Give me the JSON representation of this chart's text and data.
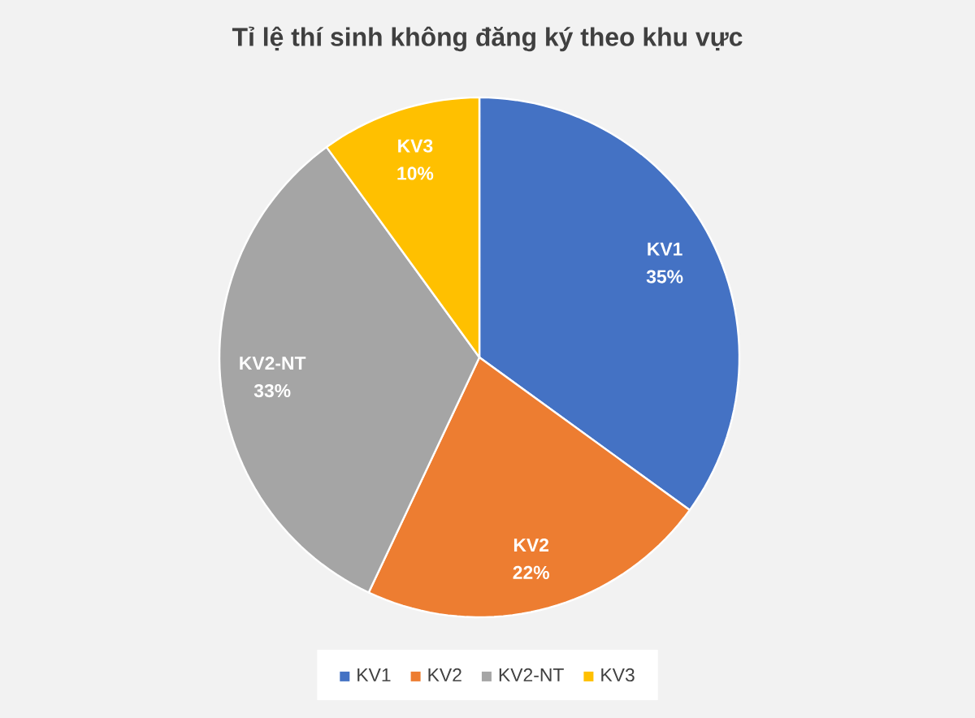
{
  "chart_data": {
    "type": "pie",
    "title": "Tỉ lệ thí sinh không đăng ký theo khu vực",
    "categories": [
      "KV1",
      "KV2",
      "KV2-NT",
      "KV3"
    ],
    "values": [
      35,
      22,
      33,
      10
    ],
    "value_labels": [
      "35%",
      "22%",
      "33%",
      "10%"
    ],
    "colors": [
      "#4472c4",
      "#ed7d31",
      "#a5a5a5",
      "#ffc000"
    ],
    "legend": "bottom"
  }
}
